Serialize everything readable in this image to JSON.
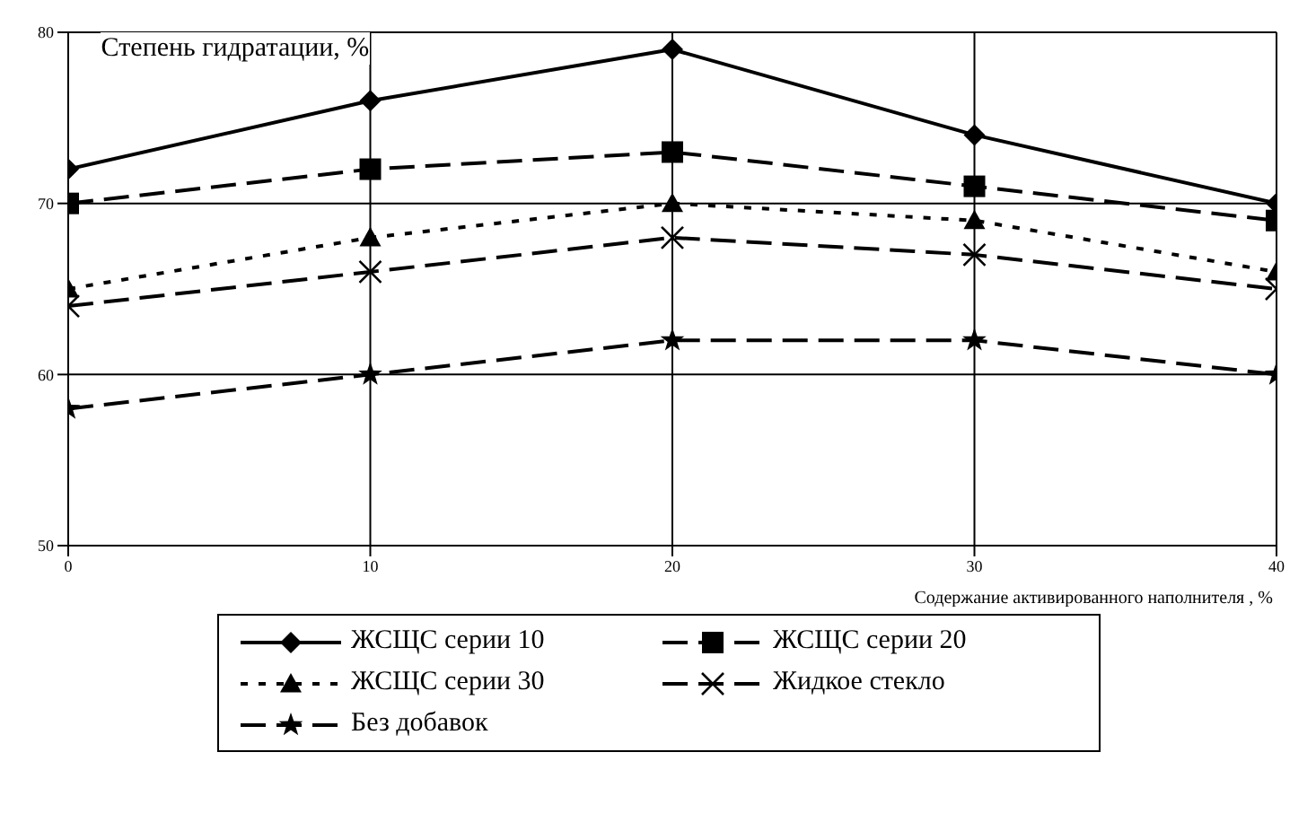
{
  "chart_data": {
    "type": "line",
    "ylabel": "Степень гидратации, %",
    "xlabel": "Содержание активированного наполнителя , %",
    "x": [
      0,
      10,
      20,
      30,
      40
    ],
    "xlim": [
      0,
      40
    ],
    "xticks": [
      0,
      10,
      20,
      30,
      40
    ],
    "ylim": [
      50,
      80
    ],
    "yticks": [
      50,
      60,
      70,
      80
    ],
    "grid": true,
    "legend": "bottom",
    "series": [
      {
        "name": "ЖСЩС серии 10",
        "color": "#000000",
        "marker": "diamond",
        "line_style": "solid",
        "values": [
          72,
          76,
          79,
          74,
          70
        ]
      },
      {
        "name": "ЖСЩС серии 20",
        "color": "#000000",
        "marker": "square",
        "line_style": "dashed",
        "values": [
          70,
          72,
          73,
          71,
          69
        ]
      },
      {
        "name": "ЖСЩС серии 30",
        "color": "#000000",
        "marker": "triangle",
        "line_style": "dotted",
        "values": [
          65,
          68,
          70,
          69,
          66
        ]
      },
      {
        "name": "Жидкое стекло",
        "color": "#000000",
        "marker": "cross",
        "line_style": "dashed",
        "values": [
          64,
          66,
          68,
          67,
          65
        ]
      },
      {
        "name": "Без добавок",
        "color": "#000000",
        "marker": "star",
        "line_style": "dashed",
        "values": [
          58,
          60,
          62,
          62,
          60
        ]
      }
    ]
  }
}
